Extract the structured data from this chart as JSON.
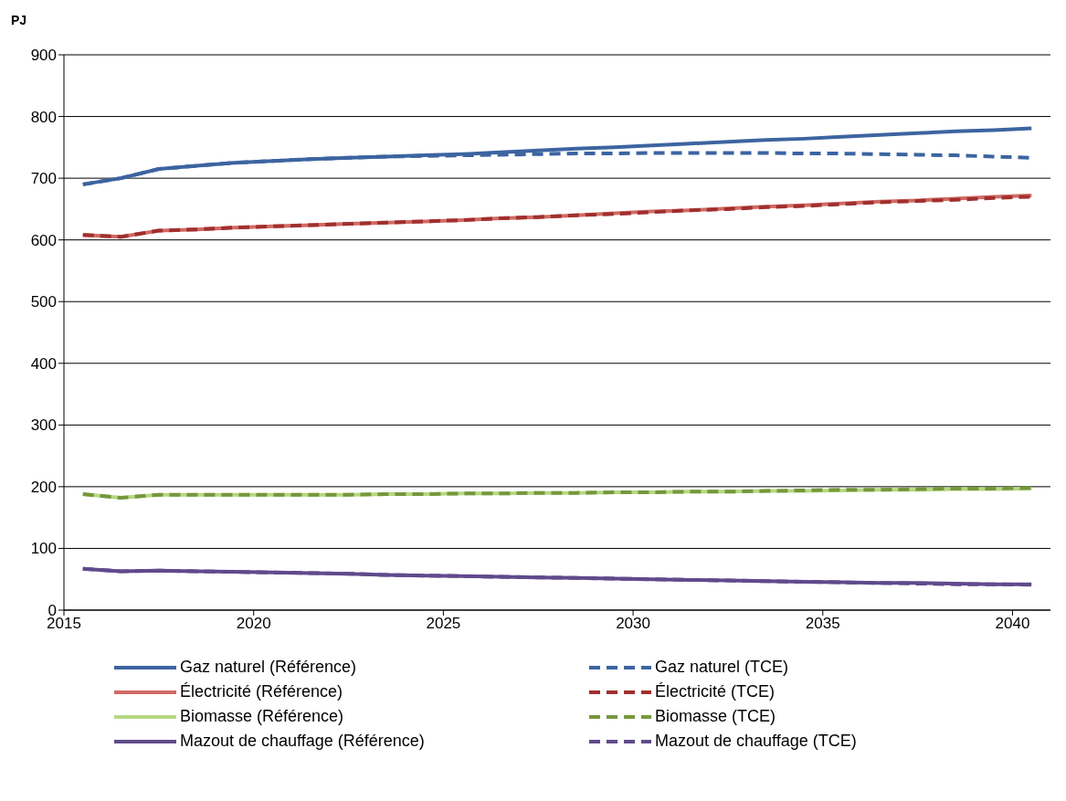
{
  "chart_data": {
    "type": "line",
    "ylabel": "PJ",
    "x": [
      2015.5,
      2016.5,
      2017.5,
      2018.5,
      2019.5,
      2020.5,
      2021.5,
      2022.5,
      2023.5,
      2024.5,
      2025.5,
      2026.5,
      2027.5,
      2028.5,
      2029.5,
      2030.5,
      2031.5,
      2032.5,
      2033.5,
      2034.5,
      2035.5,
      2036.5,
      2037.5,
      2038.5,
      2039.5,
      2040.5
    ],
    "xlim": [
      2015,
      2041
    ],
    "xticks": [
      2015,
      2020,
      2025,
      2030,
      2035,
      2040
    ],
    "ylim": [
      0,
      900
    ],
    "yticks": [
      0,
      100,
      200,
      300,
      400,
      500,
      600,
      700,
      800,
      900
    ],
    "grid": "y",
    "legend": "bottom",
    "marker": "none",
    "series": [
      {
        "name": "Gaz naturel (Référence)",
        "color": "#3c64a0",
        "line_style": "solid",
        "values": [
          690,
          700,
          715,
          720,
          725,
          728,
          731,
          733,
          735,
          737,
          739,
          742,
          745,
          748,
          750,
          753,
          756,
          759,
          762,
          764,
          767,
          770,
          773,
          776,
          778,
          781
        ]
      },
      {
        "name": "Gaz naturel (TCE)",
        "color": "#3c64a0",
        "line_style": "dashed",
        "values": [
          690,
          700,
          715,
          720,
          725,
          728,
          731,
          733,
          735,
          736,
          737,
          738,
          739,
          740,
          740,
          741,
          741,
          741,
          741,
          740,
          740,
          739,
          738,
          737,
          735,
          733
        ]
      },
      {
        "name": "Électricité (Référence)",
        "color": "#d06a66",
        "line_style": "solid",
        "values": [
          608,
          605,
          615,
          617,
          620,
          622,
          624,
          626,
          628,
          630,
          632,
          635,
          637,
          640,
          643,
          646,
          648,
          651,
          654,
          656,
          659,
          662,
          664,
          667,
          670,
          672
        ]
      },
      {
        "name": "Électricité (TCE)",
        "color": "#a0302e",
        "line_style": "dashed",
        "values": [
          608,
          605,
          615,
          617,
          620,
          622,
          624,
          626,
          628,
          630,
          632,
          635,
          637,
          640,
          642,
          645,
          648,
          650,
          653,
          655,
          658,
          661,
          663,
          665,
          668,
          670
        ]
      },
      {
        "name": "Biomasse (Référence)",
        "color": "#b5d882",
        "line_style": "solid",
        "values": [
          188,
          182,
          187,
          187,
          187,
          187,
          187,
          187,
          188,
          188,
          189,
          189,
          190,
          190,
          191,
          191,
          192,
          192,
          193,
          193,
          194,
          195,
          195,
          196,
          196,
          197
        ]
      },
      {
        "name": "Biomasse (TCE)",
        "color": "#76973c",
        "line_style": "dashed",
        "values": [
          188,
          182,
          187,
          187,
          187,
          187,
          187,
          187,
          188,
          188,
          189,
          189,
          190,
          190,
          191,
          191,
          192,
          192,
          193,
          194,
          195,
          195,
          196,
          197,
          197,
          198
        ]
      },
      {
        "name": "Mazout de chauffage (Référence)",
        "color": "#604a8c",
        "line_style": "solid",
        "values": [
          67,
          63,
          64,
          63,
          62,
          61,
          60,
          59,
          57,
          56,
          55,
          54,
          53,
          52,
          51,
          50,
          49,
          48,
          47,
          46,
          45,
          44,
          44,
          43,
          42,
          42
        ]
      },
      {
        "name": "Mazout de chauffage (TCE)",
        "color": "#604a8c",
        "line_style": "dashed",
        "values": [
          67,
          63,
          64,
          63,
          62,
          61,
          60,
          59,
          57,
          56,
          55,
          54,
          53,
          52,
          51,
          50,
          49,
          48,
          47,
          46,
          45,
          44,
          43,
          42,
          42,
          41
        ]
      }
    ]
  }
}
